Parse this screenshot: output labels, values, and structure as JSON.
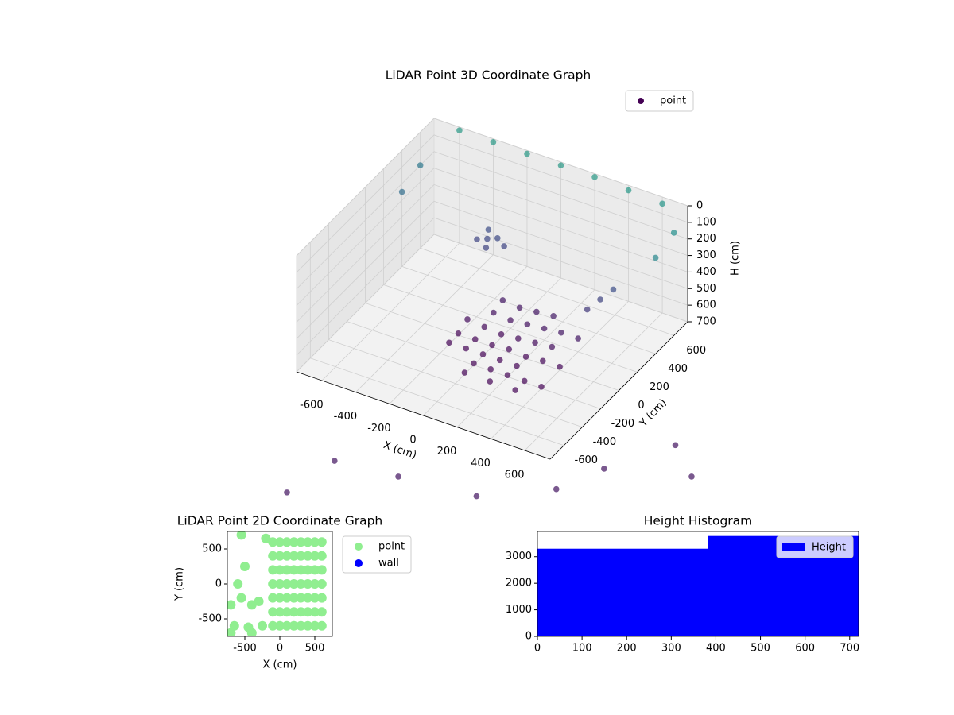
{
  "chart_data": [
    {
      "type": "scatter3d",
      "title": "LiDAR Point 3D Coordinate Graph",
      "xlabel": "X (cm)",
      "ylabel": "Y (cm)",
      "zlabel": "H (cm)",
      "xlim": [
        -750,
        750
      ],
      "ylim": [
        -750,
        750
      ],
      "zlim": [
        0,
        700
      ],
      "z_inverted": true,
      "xticks": [
        -600,
        -400,
        -200,
        0,
        200,
        400,
        600
      ],
      "yticks": [
        -600,
        -400,
        -200,
        0,
        200,
        400,
        600
      ],
      "zticks": [
        0,
        100,
        200,
        300,
        400,
        500,
        600,
        700
      ],
      "grid": true,
      "legend": "upper right",
      "colormap": "viridis",
      "series": [
        {
          "name": "point",
          "color": "#440154",
          "x": [
            0,
            100,
            200,
            300,
            -100,
            0,
            0,
            100,
            200,
            300,
            -100,
            100,
            200,
            -100,
            0,
            100,
            200,
            300,
            -100,
            0,
            100,
            200,
            300,
            -200,
            -200,
            -200,
            0,
            100,
            200,
            -100,
            0,
            150,
            300,
            400,
            400,
            400,
            -300,
            -250,
            -350,
            -280,
            -320,
            -200,
            500,
            450,
            400,
            -600,
            -400,
            -200,
            0,
            200,
            400,
            600,
            750,
            750,
            -750,
            -750,
            -210,
            -140,
            210,
            640,
            960,
            1080,
            1290,
            1500
          ],
          "y": [
            0,
            0,
            0,
            0,
            0,
            100,
            -100,
            100,
            100,
            100,
            100,
            -100,
            -100,
            -100,
            200,
            200,
            200,
            200,
            200,
            -200,
            -200,
            -200,
            -200,
            0,
            100,
            -100,
            300,
            300,
            300,
            300,
            -300,
            -300,
            -300,
            0,
            200,
            -200,
            500,
            520,
            480,
            450,
            550,
            500,
            400,
            350,
            300,
            750,
            750,
            750,
            750,
            750,
            750,
            750,
            600,
            400,
            600,
            400,
            -1850,
            -1460,
            -1410,
            -1350,
            -1070,
            -770,
            -380,
            -590
          ],
          "values": [
            690,
            680,
            690,
            680,
            690,
            680,
            690,
            670,
            660,
            650,
            670,
            690,
            690,
            690,
            650,
            640,
            630,
            620,
            640,
            690,
            690,
            690,
            690,
            690,
            660,
            690,
            630,
            620,
            610,
            620,
            690,
            690,
            690,
            680,
            620,
            690,
            430,
            420,
            440,
            450,
            410,
            440,
            400,
            450,
            500,
            20,
            20,
            20,
            20,
            20,
            30,
            40,
            80,
            120,
            200,
            250,
            630,
            630,
            630,
            630,
            630,
            630,
            630,
            630
          ]
        }
      ]
    },
    {
      "type": "scatter",
      "title": "LiDAR Point 2D Coordinate Graph",
      "xlabel": "X (cm)",
      "ylabel": "Y (cm)",
      "xlim": [
        -750,
        750
      ],
      "ylim": [
        -750,
        750
      ],
      "xticks": [
        -500,
        0,
        500
      ],
      "yticks": [
        -500,
        0,
        500
      ],
      "legend": "outside right",
      "series": [
        {
          "name": "point",
          "color": "#90ee90",
          "x": [
            -100,
            0,
            100,
            200,
            300,
            400,
            500,
            600,
            -100,
            0,
            100,
            200,
            300,
            400,
            500,
            600,
            -100,
            0,
            100,
            200,
            300,
            400,
            500,
            600,
            -100,
            0,
            100,
            200,
            300,
            400,
            500,
            600,
            -100,
            0,
            100,
            200,
            300,
            400,
            500,
            600,
            -100,
            0,
            100,
            200,
            300,
            400,
            500,
            600,
            -100,
            0,
            100,
            200,
            300,
            400,
            500,
            600,
            -700,
            -650,
            -600,
            -550,
            -500,
            -450,
            -400,
            -300,
            -250,
            -700,
            -550,
            -400,
            -200
          ],
          "y": [
            -600,
            -600,
            -600,
            -600,
            -600,
            -600,
            -600,
            -600,
            -400,
            -400,
            -400,
            -400,
            -400,
            -400,
            -400,
            -400,
            -200,
            -200,
            -200,
            -200,
            -200,
            -200,
            -200,
            -200,
            0,
            0,
            0,
            0,
            0,
            0,
            0,
            0,
            200,
            200,
            200,
            200,
            200,
            200,
            200,
            200,
            400,
            400,
            400,
            400,
            400,
            400,
            400,
            400,
            600,
            600,
            600,
            600,
            600,
            600,
            600,
            600,
            -300,
            -600,
            0,
            -200,
            250,
            -620,
            -300,
            -250,
            -600,
            -700,
            700,
            -700,
            650
          ]
        },
        {
          "name": "wall",
          "color": "#0000ff",
          "x": [],
          "y": []
        }
      ]
    },
    {
      "type": "histogram",
      "title": "Height Histogram",
      "bins": [
        0,
        382,
        720
      ],
      "values": [
        3300,
        3780
      ],
      "color": "#0000ff",
      "series_name": "Height",
      "legend": "upper right",
      "xlim": [
        0,
        720
      ],
      "ylim": [
        0,
        3950
      ],
      "xticks": [
        0,
        100,
        200,
        300,
        400,
        500,
        600,
        700
      ],
      "yticks": [
        0,
        1000,
        2000,
        3000
      ]
    }
  ]
}
